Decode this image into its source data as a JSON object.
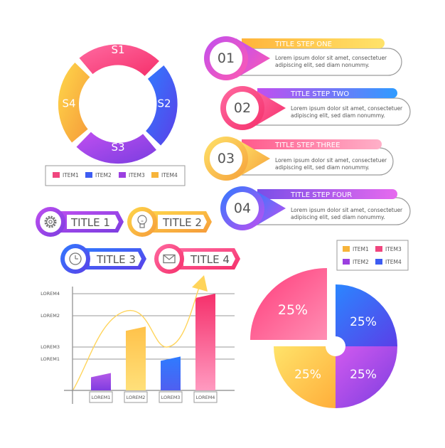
{
  "colors": {
    "pink": "#f0467e",
    "blue": "#3d5cf2",
    "purple": "#9b3fe0",
    "orange": "#f7b43a",
    "gray_text": "#555555",
    "line": "#8a8a8a"
  },
  "ring": {
    "segments": [
      "S1",
      "S2",
      "S3",
      "S4"
    ],
    "legend": [
      {
        "label": "ITEM1",
        "color": "#f0467e"
      },
      {
        "label": "ITEM2",
        "color": "#3d5cf2"
      },
      {
        "label": "ITEM3",
        "color": "#9b3fe0"
      },
      {
        "label": "ITEM4",
        "color": "#f7b43a"
      }
    ]
  },
  "steps": [
    {
      "number": "01",
      "title": "TITLE STEP ONE",
      "text1": "Lorem ipsum dolor sit amet, consectetuer",
      "text2": "adipiscing elit, sed diam nonummy.",
      "icon": "circle-badge"
    },
    {
      "number": "02",
      "title": "TITLE STEP TWO",
      "text1": "Lorem ipsum dolor sit amet, consectetuer",
      "text2": "adipiscing elit, sed diam nonummy.",
      "icon": "circle-badge"
    },
    {
      "number": "03",
      "title": "TITLE STEP THREE",
      "text1": "Lorem ipsum dolor sit amet, consectetuer",
      "text2": "adipiscing elit, sed diam nonummy.",
      "icon": "circle-badge"
    },
    {
      "number": "04",
      "title": "TITLE STEP FOUR",
      "text1": "Lorem ipsum dolor sit amet, consectetuer",
      "text2": "adipiscing elit, sed diam nonummy.",
      "icon": "circle-badge"
    }
  ],
  "title_tags": [
    {
      "label": "TITLE 1",
      "icon": "gear-icon"
    },
    {
      "label": "TITLE 2",
      "icon": "lightbulb-icon"
    },
    {
      "label": "TITLE 3",
      "icon": "clock-icon"
    },
    {
      "label": "TITLE 4",
      "icon": "envelope-icon"
    }
  ],
  "chart_data": {
    "type": "bar",
    "categories": [
      "LOREM1",
      "LOREM2",
      "LOREM3",
      "LOREM4"
    ],
    "series": [
      {
        "values": [
          18,
          66,
          35,
          100
        ]
      }
    ],
    "y_tick_labels": [
      "LOREM4",
      "LOREM2",
      "LOREM3",
      "LOREM1"
    ],
    "trend_arrow": true,
    "grid": true
  },
  "pie": {
    "legend": [
      {
        "label": "ITEM1",
        "color": "#f7b43a"
      },
      {
        "label": "ITEM3",
        "color": "#f0467e"
      },
      {
        "label": "ITEM2",
        "color": "#9b3fe0"
      },
      {
        "label": "ITEM4",
        "color": "#3d5cf2"
      }
    ],
    "slices": [
      {
        "label": "25%",
        "value": 25,
        "color": "#f0467e"
      },
      {
        "label": "25%",
        "value": 25,
        "color": "#3d5cf2"
      },
      {
        "label": "25%",
        "value": 25,
        "color": "#9b3fe0"
      },
      {
        "label": "25%",
        "value": 25,
        "color": "#f7b43a"
      }
    ]
  }
}
